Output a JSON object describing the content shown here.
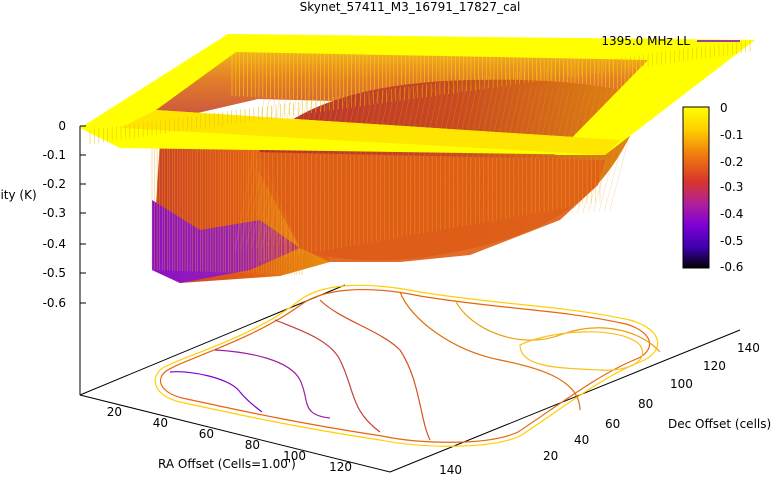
{
  "chart_data": {
    "type": "surface-3d",
    "title": "Skynet_57411_M3_16791_17827_cal",
    "xlabel": "RA Offset (Cells=1.00')",
    "ylabel": "Dec Offset (cells)",
    "zlabel": "Intensity (K)",
    "legend": {
      "label": "1395.0 MHz LL",
      "placement": "top-right",
      "color": "#7b00d6"
    },
    "x_ticks": [
      "20",
      "40",
      "60",
      "80",
      "100",
      "120",
      "140"
    ],
    "y_ticks": [
      "20",
      "40",
      "60",
      "80",
      "100",
      "120",
      "140"
    ],
    "z_ticks": [
      "0",
      "-0.1",
      "-0.2",
      "-0.3",
      "-0.4",
      "-0.5",
      "-0.6"
    ],
    "colorbar_ticks": [
      "0",
      "-0.1",
      "-0.2",
      "-0.3",
      "-0.4",
      "-0.5",
      "-0.6"
    ],
    "zlim": [
      -0.6,
      0
    ],
    "colormap": [
      "#000000",
      "#3a00a8",
      "#7b00d6",
      "#b0209a",
      "#d8362a",
      "#f07a10",
      "#ffd000",
      "#ffff00"
    ],
    "contour_levels": [
      -0.5,
      -0.4,
      -0.3,
      -0.2,
      -0.1,
      -0.02
    ]
  }
}
